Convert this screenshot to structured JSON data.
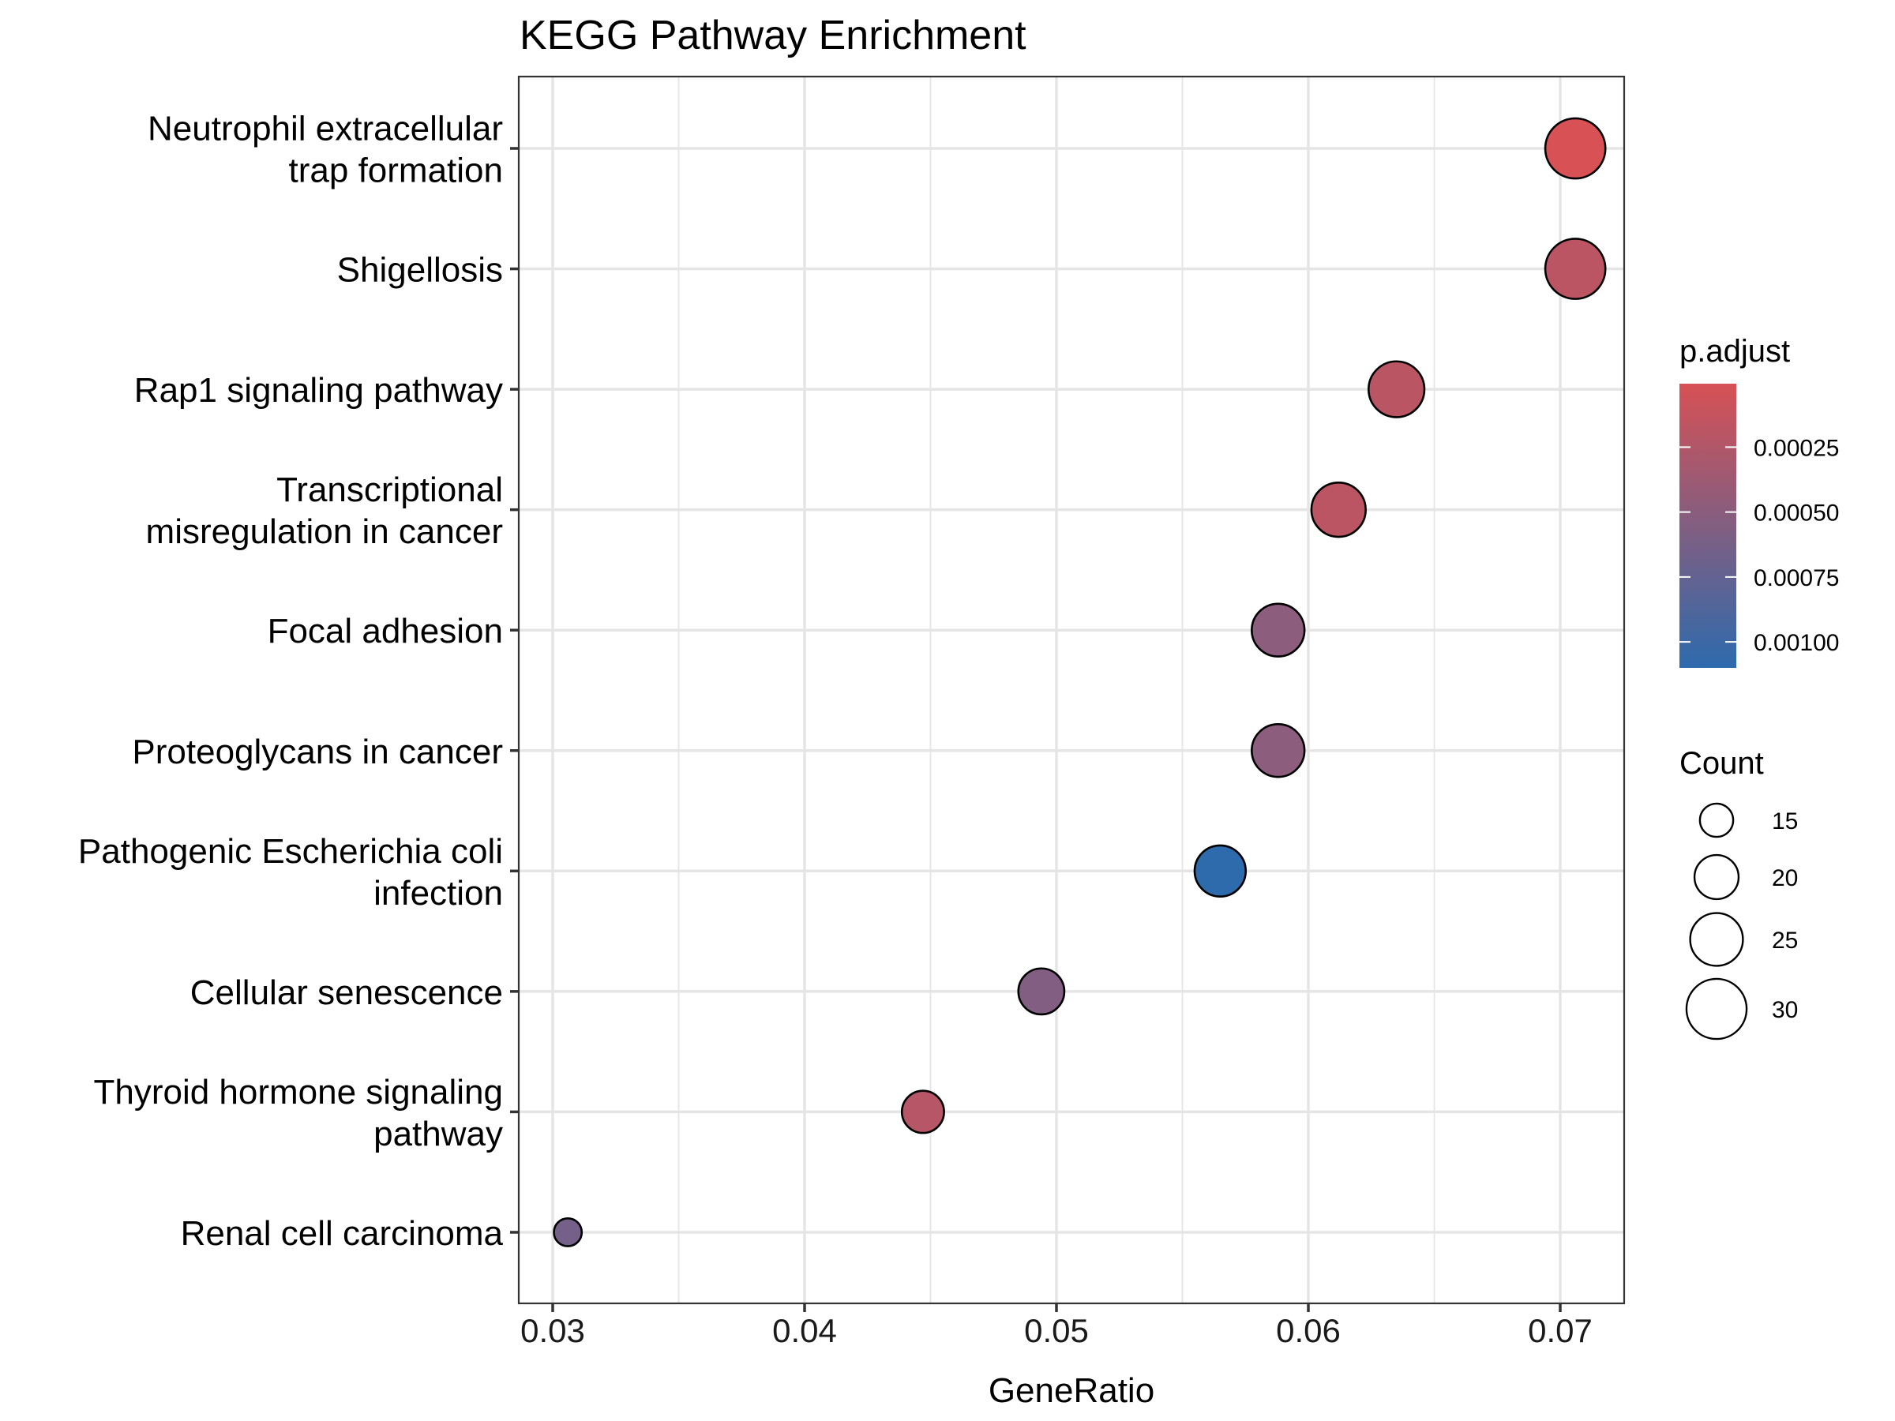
{
  "chart_data": {
    "type": "scatter",
    "title": "KEGG Pathway Enrichment",
    "xlabel": "GeneRatio",
    "ylabel": "",
    "xlim": [
      0.0288,
      0.0732
    ],
    "xticks": [
      0.03,
      0.04,
      0.05,
      0.06,
      0.07
    ],
    "xtick_labels": [
      "0.03",
      "0.04",
      "0.05",
      "0.06",
      "0.07"
    ],
    "grid": true,
    "categories": [
      {
        "lines": [
          "Neutrophil extracellular",
          "trap formation"
        ]
      },
      {
        "lines": [
          "Shigellosis"
        ]
      },
      {
        "lines": [
          "Rap1 signaling pathway"
        ]
      },
      {
        "lines": [
          "Transcriptional",
          "misregulation in cancer"
        ]
      },
      {
        "lines": [
          "Focal adhesion"
        ]
      },
      {
        "lines": [
          "Proteoglycans in cancer"
        ]
      },
      {
        "lines": [
          "Pathogenic Escherichia coli",
          "infection"
        ]
      },
      {
        "lines": [
          "Cellular senescence"
        ]
      },
      {
        "lines": [
          "Thyroid hormone signaling",
          "pathway"
        ]
      },
      {
        "lines": [
          "Renal cell carcinoma"
        ]
      }
    ],
    "points": [
      {
        "gene_ratio": 0.0706,
        "count": 30,
        "p_adjust": 5.6e-06
      },
      {
        "gene_ratio": 0.0706,
        "count": 30,
        "p_adjust": 0.00018
      },
      {
        "gene_ratio": 0.0635,
        "count": 27,
        "p_adjust": 0.00019
      },
      {
        "gene_ratio": 0.0612,
        "count": 26,
        "p_adjust": 0.00018
      },
      {
        "gene_ratio": 0.0588,
        "count": 25,
        "p_adjust": 0.00049
      },
      {
        "gene_ratio": 0.0588,
        "count": 25,
        "p_adjust": 0.00049
      },
      {
        "gene_ratio": 0.0565,
        "count": 24,
        "p_adjust": 0.0011
      },
      {
        "gene_ratio": 0.0494,
        "count": 21,
        "p_adjust": 0.00056
      },
      {
        "gene_ratio": 0.0447,
        "count": 19,
        "p_adjust": 0.00022
      },
      {
        "gene_ratio": 0.0306,
        "count": 13,
        "p_adjust": 0.00064
      }
    ],
    "color_legend": {
      "title": "p.adjust",
      "limits": [
        5.6e-06,
        0.0011
      ],
      "ticks": [
        0.00025,
        0.0005,
        0.00075,
        0.001
      ],
      "tick_labels": [
        "0.00025",
        "0.00050",
        "0.00075",
        "0.00100"
      ],
      "low_color": "#d75155",
      "high_color": "#2d6bad",
      "placement": "right"
    },
    "size_legend": {
      "title": "Count",
      "values": [
        15,
        20,
        25,
        30
      ],
      "labels": [
        "15",
        "20",
        "25",
        "30"
      ],
      "placement": "right"
    },
    "colors": {
      "panel_border": "#333333",
      "grid_major": "#e5e5e5",
      "point_stroke": "#000000"
    }
  }
}
